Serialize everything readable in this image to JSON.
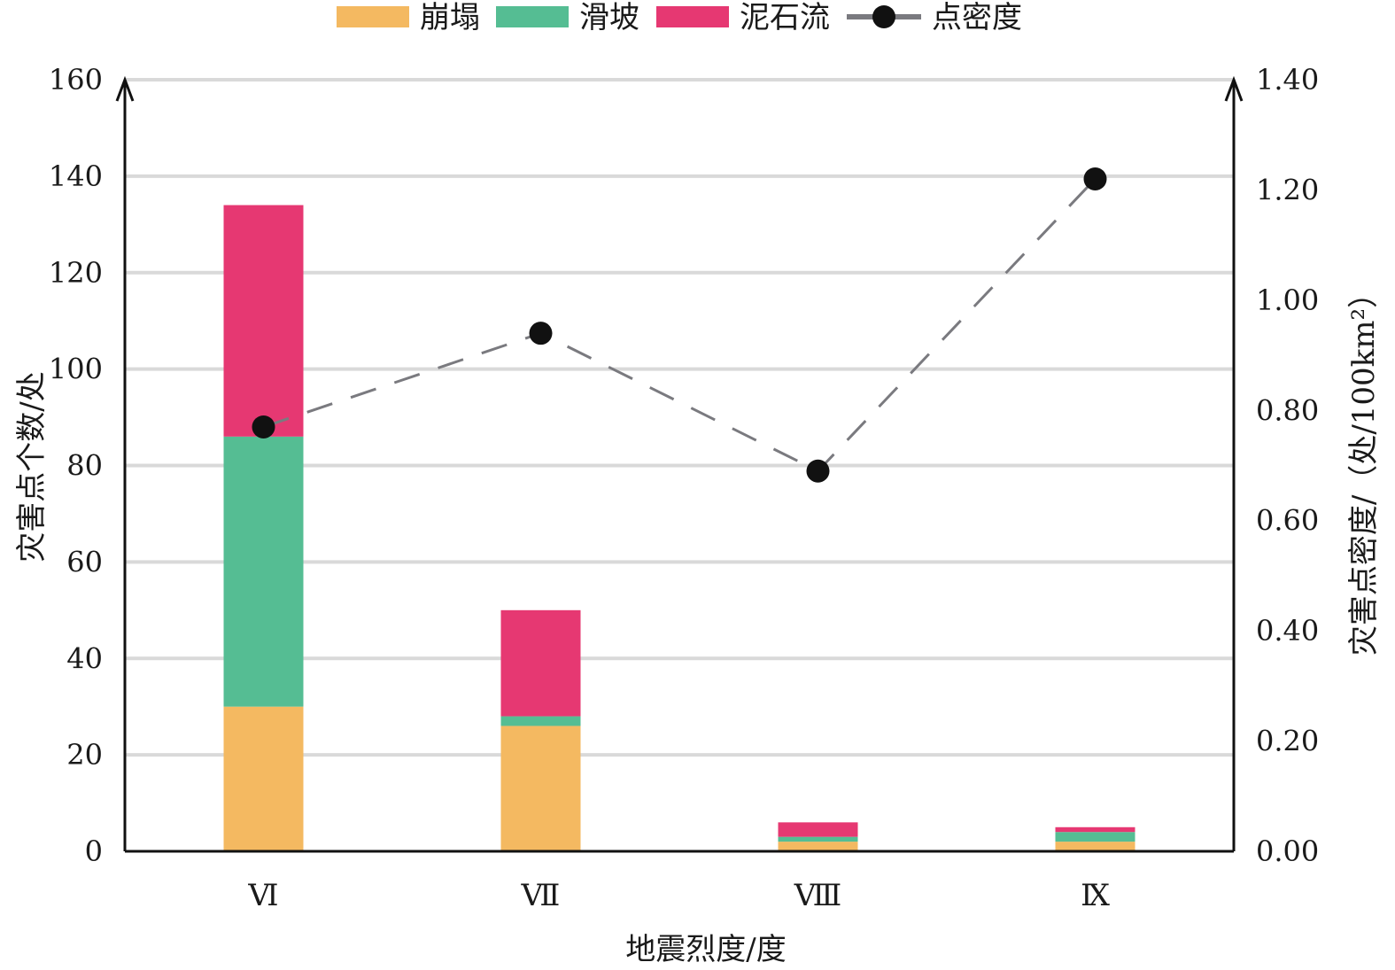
{
  "chart_data": {
    "type": "bar",
    "stacked": true,
    "categories": [
      "Ⅵ",
      "Ⅶ",
      "Ⅷ",
      "Ⅸ"
    ],
    "series": [
      {
        "name": "崩塌",
        "values": [
          30,
          26,
          2,
          2
        ],
        "color": "#f4b961"
      },
      {
        "name": "滑坡",
        "values": [
          56,
          2,
          1,
          2
        ],
        "color": "#55bd93"
      },
      {
        "name": "泥石流",
        "values": [
          48,
          22,
          3,
          1
        ],
        "color": "#e63872"
      }
    ],
    "line_series": {
      "name": "点密度",
      "axis": "right",
      "values": [
        0.77,
        0.94,
        0.69,
        1.22
      ],
      "color": "#7a7a7f",
      "marker_color": "#111111",
      "style": "dashed"
    },
    "xlabel": "地震烈度/度",
    "ylabel": "灾害点个数/处",
    "y2label": "灾害点密度/（处/100km²）",
    "ylim": [
      0,
      160
    ],
    "y2lim": [
      0,
      1.4
    ],
    "yticks": [
      0,
      20,
      40,
      60,
      80,
      100,
      120,
      140,
      160
    ],
    "y2ticks": [
      "0.00",
      "0.20",
      "0.40",
      "0.60",
      "0.80",
      "1.00",
      "1.20",
      "1.40"
    ],
    "grid": true,
    "legend_position": "top"
  }
}
